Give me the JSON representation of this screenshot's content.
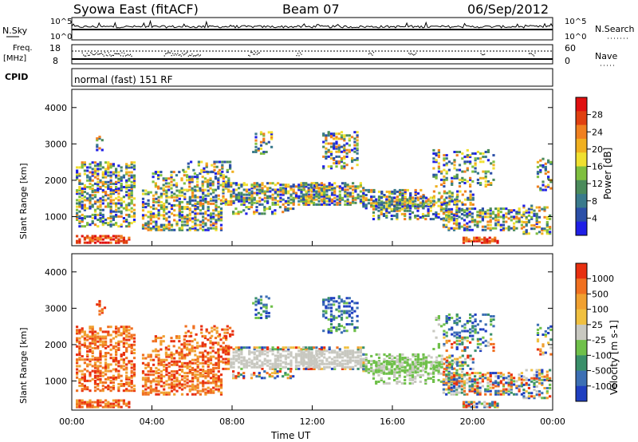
{
  "header": {
    "station": "Syowa East (fitACF)",
    "beam": "Beam 07",
    "date": "06/Sep/2012"
  },
  "status_panel": {
    "nsky_label": "N.Sky",
    "nsky_ticks": [
      "10^5",
      "10^0"
    ],
    "nsearch_label": "N.Search",
    "nsearch_ticks": [
      "10^5",
      "10^0"
    ],
    "freq_label": "Freq.",
    "freq_unit": "[MHz]",
    "freq_ticks": [
      "18",
      "8"
    ],
    "nave_label": "Nave",
    "nave_ticks": [
      "60",
      "0"
    ],
    "cpid_label": "CPID",
    "cpid_text": "normal (fast) 151 RF"
  },
  "colors": {
    "power": [
      "#1f1fe6",
      "#2b4fa8",
      "#3a7a8c",
      "#4b8b5b",
      "#7fbf3f",
      "#f0e030",
      "#f0b020",
      "#f08020",
      "#e04010",
      "#e01010"
    ],
    "velocity": [
      "#1f3fc0",
      "#3c6fb4",
      "#3a8f6a",
      "#6fc04a",
      "#c8c8c0",
      "#f0c040",
      "#f0a030",
      "#f07020",
      "#e83010"
    ]
  },
  "chart_data": [
    {
      "type": "heatmap",
      "name": "power",
      "ylabel": "Slant Range [km]",
      "x_ticks": [
        "00:00",
        "04:00",
        "08:00",
        "12:00",
        "16:00",
        "20:00",
        "00:00"
      ],
      "xlim": [
        0,
        24
      ],
      "ylim": [
        200,
        4500
      ],
      "y_ticks": [
        "1000",
        "2000",
        "3000",
        "4000"
      ],
      "colorbar_label": "Power [dB]",
      "colorbar_ticks": [
        "28",
        "24",
        "20",
        "16",
        "12",
        "8",
        "4"
      ]
    },
    {
      "type": "heatmap",
      "name": "velocity",
      "ylabel": "Slant Range [km]",
      "x_ticks": [
        "00:00",
        "04:00",
        "08:00",
        "12:00",
        "16:00",
        "20:00",
        "00:00"
      ],
      "xlim": [
        0,
        24
      ],
      "ylim": [
        200,
        4500
      ],
      "y_ticks": [
        "1000",
        "2000",
        "3000",
        "4000"
      ],
      "colorbar_label": "Velocity [m s-1]",
      "colorbar_ticks": [
        "1000",
        "500",
        "100",
        "25",
        "-25",
        "-100",
        "-500",
        "-1000"
      ]
    }
  ],
  "xlabel": "Time UT"
}
